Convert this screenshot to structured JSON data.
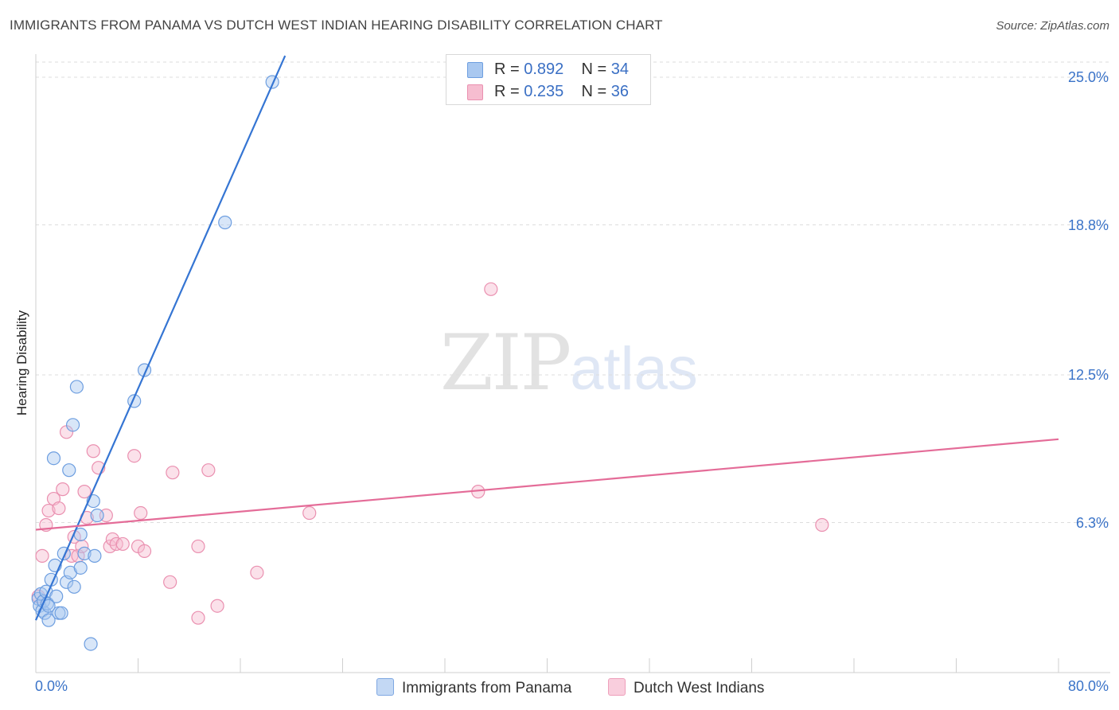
{
  "header": {
    "title": "IMMIGRANTS FROM PANAMA VS DUTCH WEST INDIAN HEARING DISABILITY CORRELATION CHART",
    "source": "Source: ZipAtlas.com"
  },
  "watermark": {
    "zip": "ZIP",
    "atlas": "atlas"
  },
  "legend_top": {
    "rows": [
      {
        "r_label": "R = ",
        "r_value": "0.892",
        "n_label": "N = ",
        "n_value": "34"
      },
      {
        "r_label": "R = ",
        "r_value": "0.235",
        "n_label": "N = ",
        "n_value": "36"
      }
    ]
  },
  "legend_bottom": {
    "series1": "Immigrants from Panama",
    "series2": "Dutch West Indians"
  },
  "colors": {
    "blue_fill": "#a9c8f0",
    "blue_stroke": "#6d9ee0",
    "blue_line": "#3575d3",
    "pink_fill": "#f6bdd0",
    "pink_stroke": "#ea90b0",
    "pink_line": "#e46c98",
    "grid": "#dddddd",
    "tick_text": "#3a73c8"
  },
  "chart_data": {
    "type": "scatter",
    "title": "IMMIGRANTS FROM PANAMA VS DUTCH WEST INDIAN HEARING DISABILITY CORRELATION CHART",
    "xlabel": "",
    "ylabel": "Hearing Disability",
    "xlim": [
      0,
      80
    ],
    "ylim": [
      0,
      26
    ],
    "x_tick_labels": [
      "0.0%",
      "80.0%"
    ],
    "y_ticks": [
      6.3,
      12.5,
      18.8,
      25.0
    ],
    "y_tick_labels": [
      "6.3%",
      "12.5%",
      "18.8%",
      "25.0%"
    ],
    "grid": true,
    "series": [
      {
        "name": "Immigrants from Panama",
        "color": "blue",
        "r": 0.892,
        "n": 34,
        "trend": {
          "x": [
            0,
            19.5
          ],
          "y": [
            2.2,
            25.9
          ]
        },
        "points": [
          [
            0.2,
            3.1
          ],
          [
            0.3,
            2.8
          ],
          [
            0.4,
            3.3
          ],
          [
            0.5,
            2.6
          ],
          [
            0.6,
            3.0
          ],
          [
            0.7,
            2.5
          ],
          [
            0.8,
            3.4
          ],
          [
            0.9,
            2.9
          ],
          [
            1.0,
            2.2
          ],
          [
            1.2,
            3.9
          ],
          [
            1.4,
            9.0
          ],
          [
            1.5,
            4.5
          ],
          [
            1.6,
            3.2
          ],
          [
            1.8,
            2.5
          ],
          [
            2.0,
            2.5
          ],
          [
            2.2,
            5.0
          ],
          [
            2.4,
            3.8
          ],
          [
            2.6,
            8.5
          ],
          [
            2.7,
            4.2
          ],
          [
            2.9,
            10.4
          ],
          [
            3.0,
            3.6
          ],
          [
            3.2,
            12.0
          ],
          [
            3.5,
            4.4
          ],
          [
            3.5,
            5.8
          ],
          [
            3.8,
            5.0
          ],
          [
            4.3,
            1.2
          ],
          [
            4.5,
            7.2
          ],
          [
            4.6,
            4.9
          ],
          [
            4.8,
            6.6
          ],
          [
            7.7,
            11.4
          ],
          [
            8.5,
            12.7
          ],
          [
            14.8,
            18.9
          ],
          [
            18.5,
            24.8
          ],
          [
            1.0,
            2.8
          ]
        ]
      },
      {
        "name": "Dutch West Indians",
        "color": "pink",
        "r": 0.235,
        "n": 36,
        "trend": {
          "x": [
            0,
            80
          ],
          "y": [
            6.0,
            9.8
          ]
        },
        "points": [
          [
            0.2,
            3.2
          ],
          [
            0.5,
            4.9
          ],
          [
            0.8,
            6.2
          ],
          [
            1.0,
            6.8
          ],
          [
            1.4,
            7.3
          ],
          [
            1.8,
            6.9
          ],
          [
            2.1,
            7.7
          ],
          [
            2.4,
            10.1
          ],
          [
            2.8,
            4.9
          ],
          [
            3.0,
            5.7
          ],
          [
            3.3,
            4.9
          ],
          [
            3.6,
            5.3
          ],
          [
            3.8,
            7.6
          ],
          [
            4.0,
            6.5
          ],
          [
            4.5,
            9.3
          ],
          [
            4.9,
            8.6
          ],
          [
            5.5,
            6.6
          ],
          [
            5.8,
            5.3
          ],
          [
            6.0,
            5.6
          ],
          [
            6.3,
            5.4
          ],
          [
            6.8,
            5.4
          ],
          [
            7.7,
            9.1
          ],
          [
            8.0,
            5.3
          ],
          [
            8.2,
            6.7
          ],
          [
            8.5,
            5.1
          ],
          [
            10.5,
            3.8
          ],
          [
            10.7,
            8.4
          ],
          [
            12.7,
            2.3
          ],
          [
            12.7,
            5.3
          ],
          [
            13.5,
            8.5
          ],
          [
            14.2,
            2.8
          ],
          [
            17.3,
            4.2
          ],
          [
            21.4,
            6.7
          ],
          [
            34.6,
            7.6
          ],
          [
            35.6,
            16.1
          ],
          [
            61.5,
            6.2
          ]
        ]
      }
    ]
  }
}
